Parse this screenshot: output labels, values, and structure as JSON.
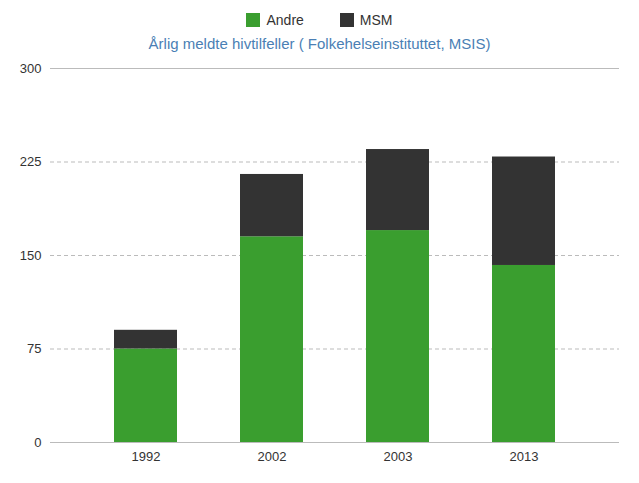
{
  "chart_data": {
    "type": "bar",
    "stacked": true,
    "title": "Årlig meldte hivtilfeller ( Folkehelseinstituttet, MSIS)",
    "categories": [
      "1992",
      "2002",
      "2003",
      "2013"
    ],
    "series": [
      {
        "name": "Andre",
        "color": "#3a9e2f",
        "values": [
          75,
          165,
          170,
          142
        ]
      },
      {
        "name": "MSM",
        "color": "#333333",
        "values": [
          15,
          50,
          65,
          87
        ]
      }
    ],
    "ylim": [
      0,
      300
    ],
    "yticks": [
      0,
      75,
      150,
      225,
      300
    ],
    "grid": true,
    "legend": "top"
  }
}
